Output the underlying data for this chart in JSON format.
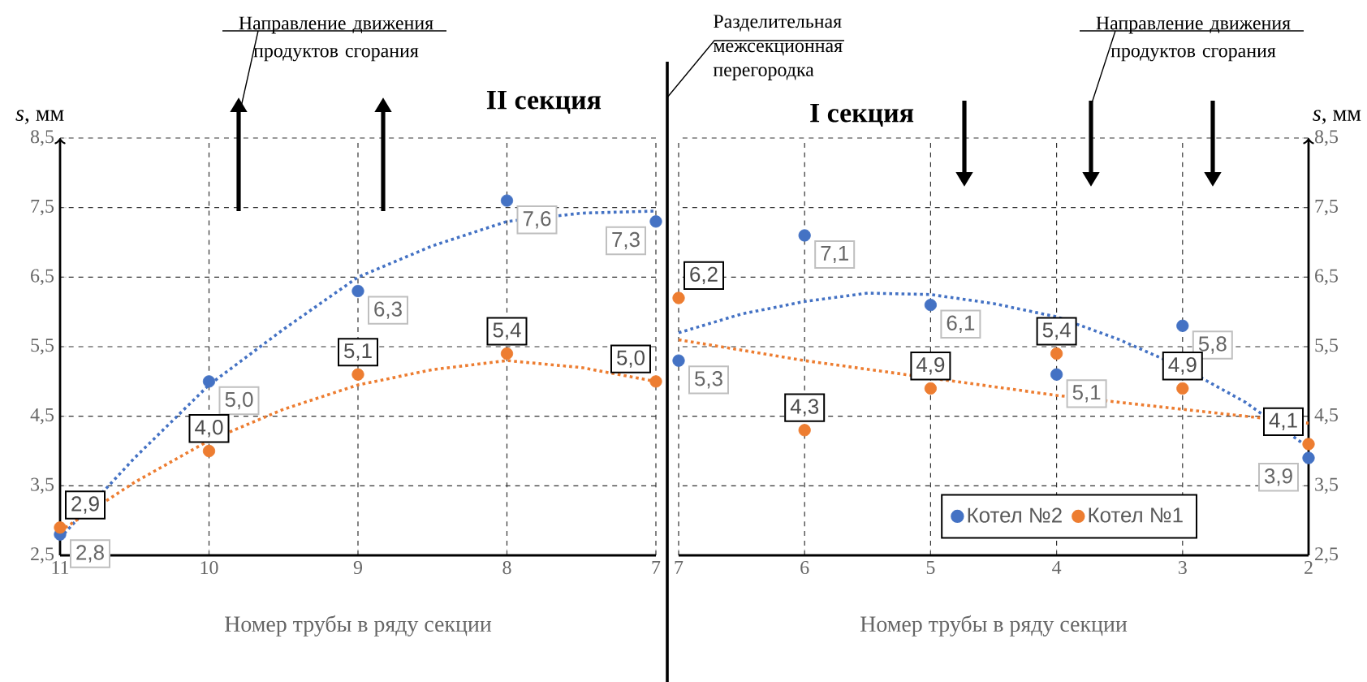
{
  "chart_data": [
    {
      "type": "scatter",
      "title": "II секция",
      "xlabel": "Номер трубы в ряду секции",
      "ylabel": "*s*, мм",
      "xlim": [
        11,
        7
      ],
      "xticks": [
        11,
        10,
        9,
        8,
        7
      ],
      "ylim": [
        2.5,
        8.5
      ],
      "yticks": [
        {
          "value": 2.5,
          "label": "2,5"
        },
        {
          "value": 3.5,
          "label": "3,5"
        },
        {
          "value": 4.5,
          "label": "4,5"
        },
        {
          "value": 5.5,
          "label": "5,5"
        },
        {
          "value": 6.5,
          "label": "6,5"
        },
        {
          "value": 7.5,
          "label": "7,5"
        },
        {
          "value": 8.5,
          "label": "8,5"
        }
      ],
      "grid": true,
      "legend": false,
      "annotations": [
        "Направление движения продуктов сгорания",
        "Разделительная межсекционная перегородка"
      ],
      "series": [
        {
          "color": "#4472c4",
          "marker": "circle",
          "x": [
            11,
            10,
            9,
            8,
            7
          ],
          "values": [
            2.8,
            5.0,
            6.3,
            7.6,
            7.3
          ],
          "value_labels": [
            "2,8",
            "5,0",
            "6,3",
            "7,6",
            "7,3"
          ]
        },
        {
          "color": "#ed7d31",
          "marker": "circle",
          "x": [
            11,
            10,
            9,
            8,
            7
          ],
          "values": [
            2.9,
            4.0,
            5.1,
            5.4,
            5.0
          ],
          "value_labels": [
            "2,9",
            "4,0",
            "5,1",
            "5,4",
            "5,0"
          ]
        },
        {
          "type": "line",
          "color": "#4472c4",
          "marker": "none",
          "line_style": "dotted",
          "x": [
            11,
            10.5,
            10,
            9.5,
            9,
            8.5,
            8,
            7.5,
            7
          ],
          "values": [
            2.75,
            3.9,
            4.95,
            5.75,
            6.5,
            6.95,
            7.3,
            7.42,
            7.45
          ]
        },
        {
          "type": "line",
          "color": "#ed7d31",
          "marker": "none",
          "line_style": "dotted",
          "x": [
            11,
            10.5,
            10,
            9.5,
            9,
            8.5,
            8,
            7.5,
            7
          ],
          "values": [
            2.85,
            3.55,
            4.15,
            4.6,
            4.95,
            5.17,
            5.3,
            5.2,
            5.0
          ]
        }
      ]
    },
    {
      "type": "scatter",
      "title": "I секция",
      "xlabel": "Номер трубы в ряду секции",
      "ylabel": "*s*, мм",
      "xlim": [
        7,
        2
      ],
      "xticks": [
        7,
        6,
        5,
        4,
        3,
        2
      ],
      "ylim": [
        2.5,
        8.5
      ],
      "yticks": [
        {
          "value": 2.5,
          "label": "2,5"
        },
        {
          "value": 3.5,
          "label": "3,5"
        },
        {
          "value": 4.5,
          "label": "4,5"
        },
        {
          "value": 5.5,
          "label": "5,5"
        },
        {
          "value": 6.5,
          "label": "6,5"
        },
        {
          "value": 7.5,
          "label": "7,5"
        },
        {
          "value": 8.5,
          "label": "8,5"
        }
      ],
      "grid": true,
      "legend": "bottom",
      "annotations": [
        "Направление движения продуктов сгорания"
      ],
      "series": [
        {
          "name": "Котел №2",
          "color": "#4472c4",
          "marker": "circle",
          "x": [
            7,
            6,
            5,
            4,
            3,
            2
          ],
          "values": [
            5.3,
            7.1,
            6.1,
            5.1,
            5.8,
            3.9
          ],
          "value_labels": [
            "5,3",
            "7,1",
            "6,1",
            "5,1",
            "5,8",
            "3,9"
          ]
        },
        {
          "name": "Котел №1",
          "color": "#ed7d31",
          "marker": "circle",
          "x": [
            7,
            6,
            5,
            4,
            3,
            2
          ],
          "values": [
            6.2,
            4.3,
            4.9,
            5.4,
            4.9,
            4.1
          ],
          "value_labels": [
            "6,2",
            "4,3",
            "4,9",
            "5,4",
            "4,9",
            "4,1"
          ]
        },
        {
          "type": "line",
          "color": "#4472c4",
          "marker": "none",
          "line_style": "dotted",
          "x": [
            7,
            6.5,
            6,
            5.5,
            5,
            4.5,
            4,
            3.5,
            3,
            2.5,
            2
          ],
          "values": [
            5.7,
            5.97,
            6.15,
            6.27,
            6.25,
            6.12,
            5.93,
            5.6,
            5.2,
            4.7,
            4.05
          ]
        },
        {
          "type": "line",
          "color": "#ed7d31",
          "marker": "none",
          "line_style": "dotted",
          "x": [
            7,
            6,
            5,
            4,
            3,
            2
          ],
          "values": [
            5.6,
            5.3,
            5.05,
            4.8,
            4.6,
            4.4
          ]
        }
      ]
    }
  ]
}
